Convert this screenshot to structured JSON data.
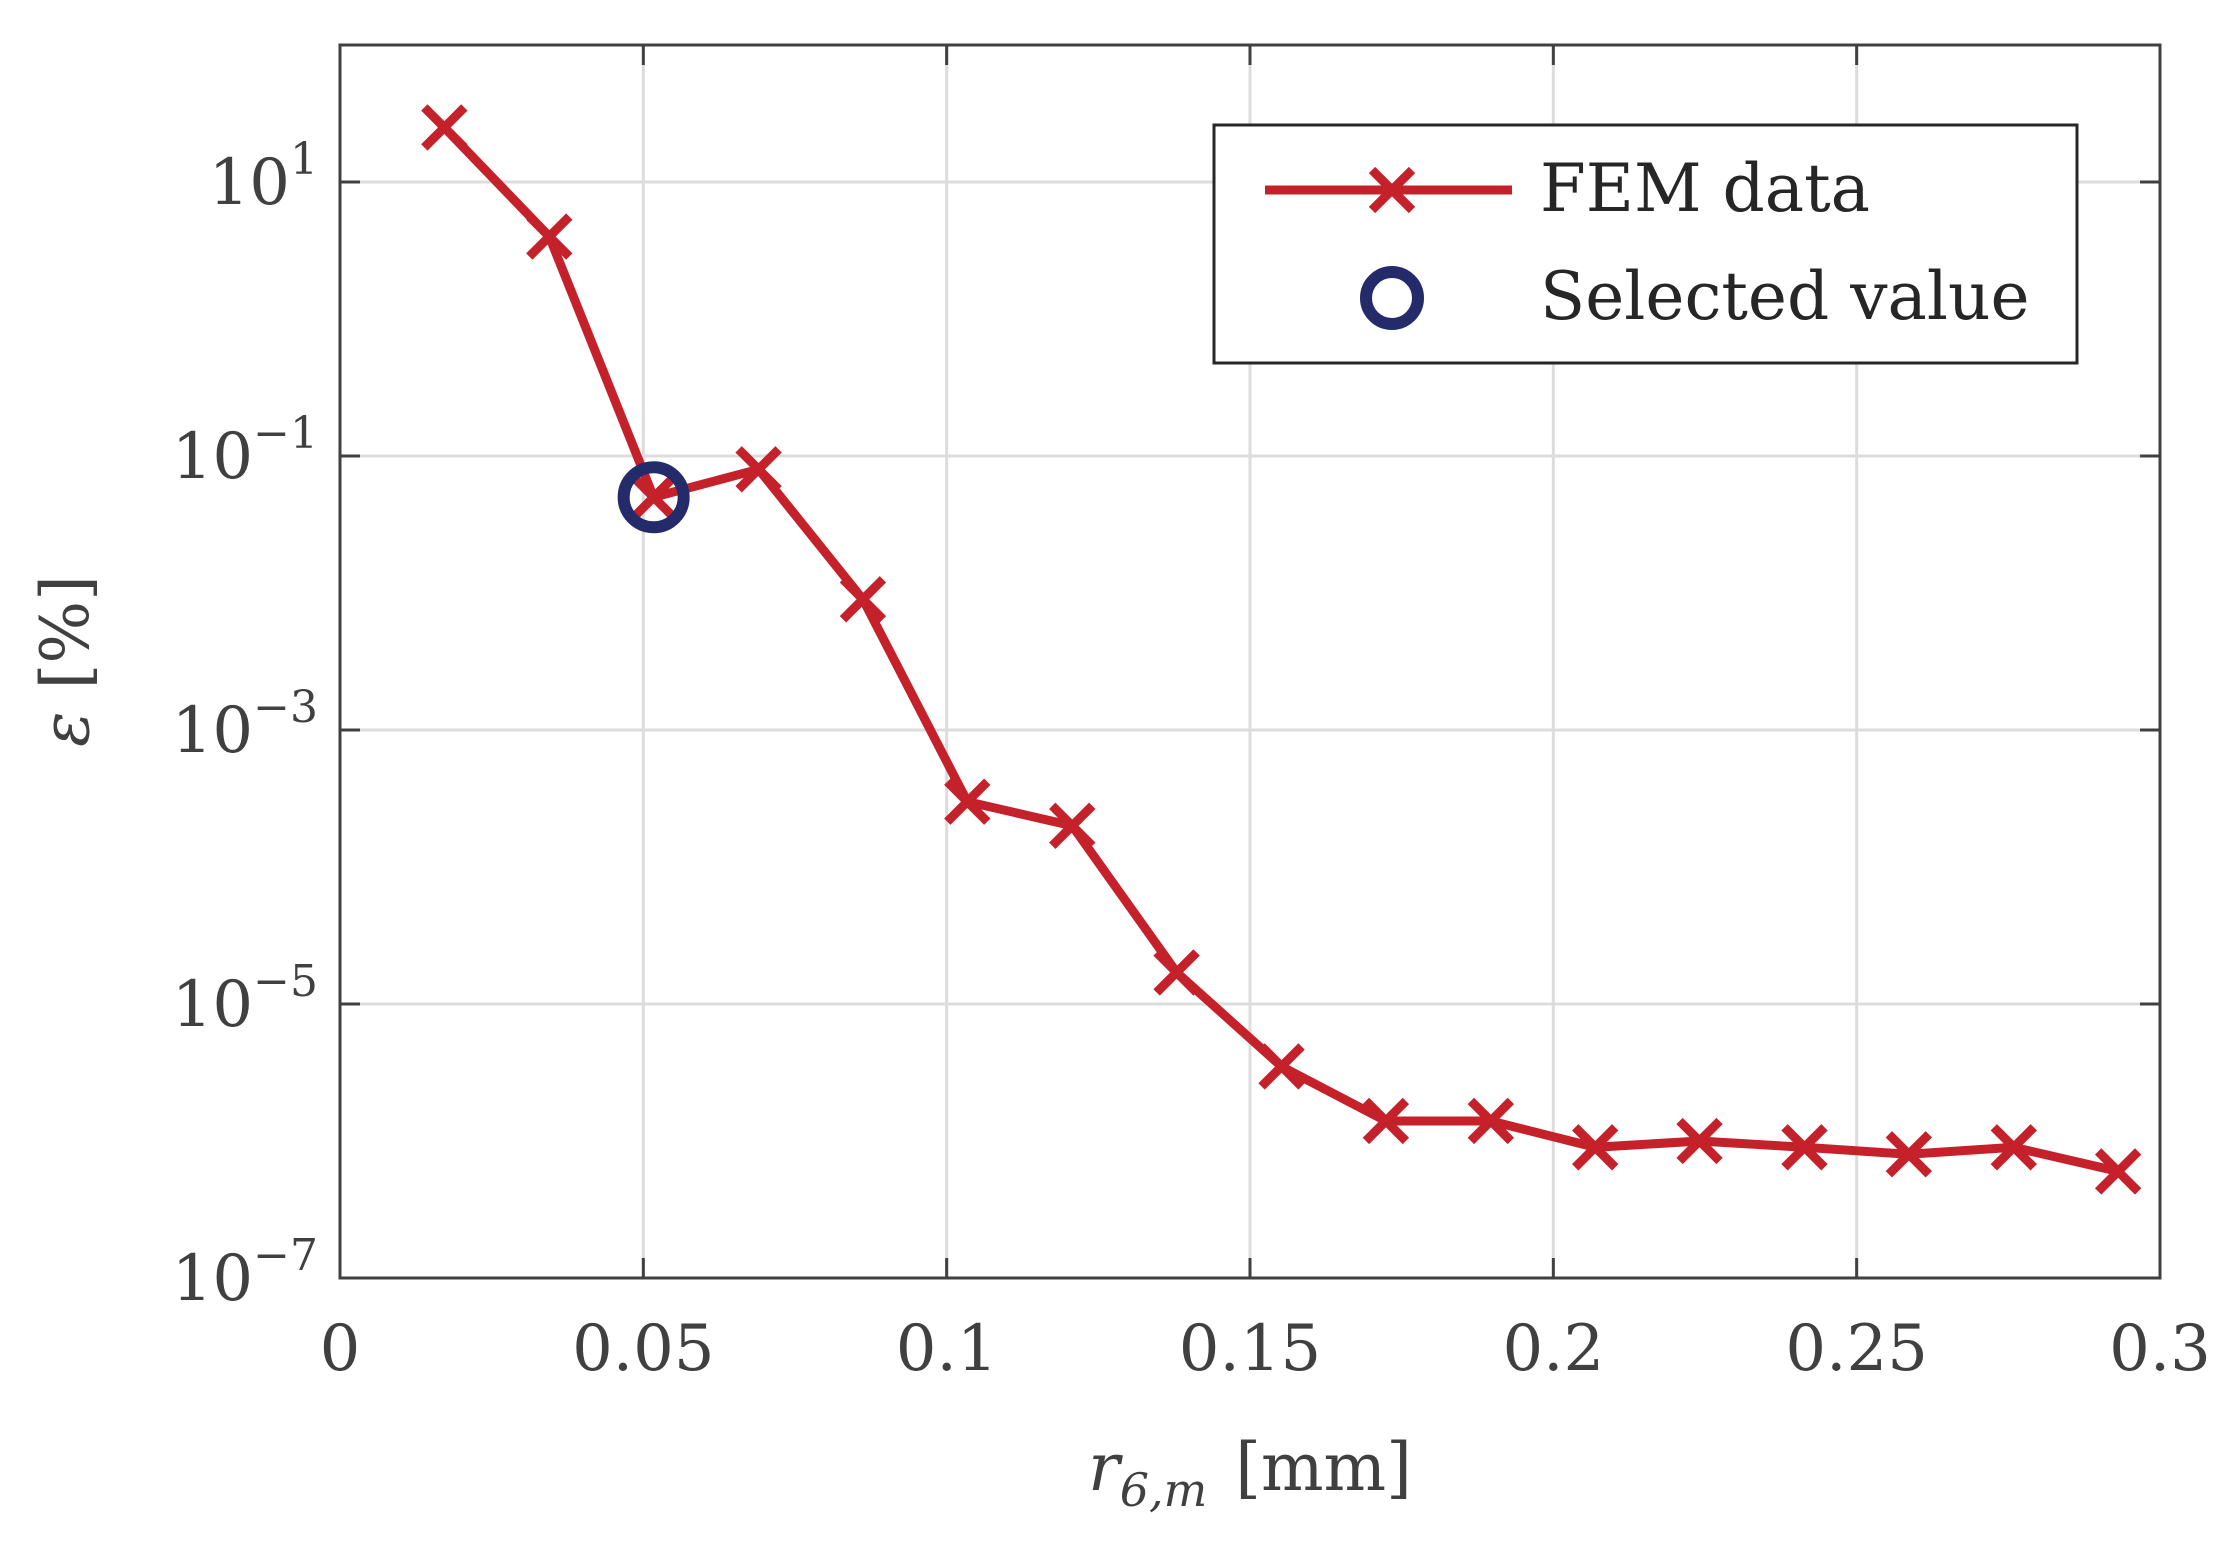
{
  "chart_data": {
    "type": "line",
    "title": "",
    "xlabel_main": "r",
    "xlabel_subscript": "6,m",
    "xlabel_unit": "[mm]",
    "ylabel_symbol": "ε",
    "ylabel_unit": "[%]",
    "xlim": [
      0,
      0.3
    ],
    "ylog": true,
    "ylim_exponents": [
      -7,
      2
    ],
    "x_ticks": [
      {
        "value": 0,
        "label": "0"
      },
      {
        "value": 0.05,
        "label": "0.05"
      },
      {
        "value": 0.1,
        "label": "0.1"
      },
      {
        "value": 0.15,
        "label": "0.15"
      },
      {
        "value": 0.2,
        "label": "0.2"
      },
      {
        "value": 0.25,
        "label": "0.25"
      },
      {
        "value": 0.3,
        "label": "0.3"
      }
    ],
    "y_ticks": [
      {
        "exponent": 1,
        "base": "10",
        "power": "1"
      },
      {
        "exponent": -1,
        "base": "10",
        "power": "−1"
      },
      {
        "exponent": -3,
        "base": "10",
        "power": "−3"
      },
      {
        "exponent": -5,
        "base": "10",
        "power": "−5"
      },
      {
        "exponent": -7,
        "base": "10",
        "power": "−7"
      }
    ],
    "grid": true,
    "legend_position": "top-right",
    "colors": {
      "fem": "#c4212a",
      "selected": "#232b6b",
      "axis": "#404040",
      "grid": "#dcdcdc"
    },
    "series": [
      {
        "name": "FEM data",
        "marker": "x",
        "x": [
          0.0172,
          0.0345,
          0.0517,
          0.069,
          0.0862,
          0.1034,
          0.1207,
          0.1379,
          0.1552,
          0.1724,
          0.1897,
          0.2069,
          0.2241,
          0.2414,
          0.2586,
          0.2759,
          0.2931
        ],
        "y": [
          25,
          4,
          0.05,
          0.08,
          0.009,
          0.0003,
          0.0002,
          1.7e-05,
          3.5e-06,
          1.4e-06,
          1.4e-06,
          9e-07,
          1e-06,
          9e-07,
          8e-07,
          9e-07,
          6e-07
        ]
      },
      {
        "name": "Selected value",
        "marker": "o",
        "x": [
          0.0517
        ],
        "y": [
          0.05
        ]
      }
    ]
  }
}
